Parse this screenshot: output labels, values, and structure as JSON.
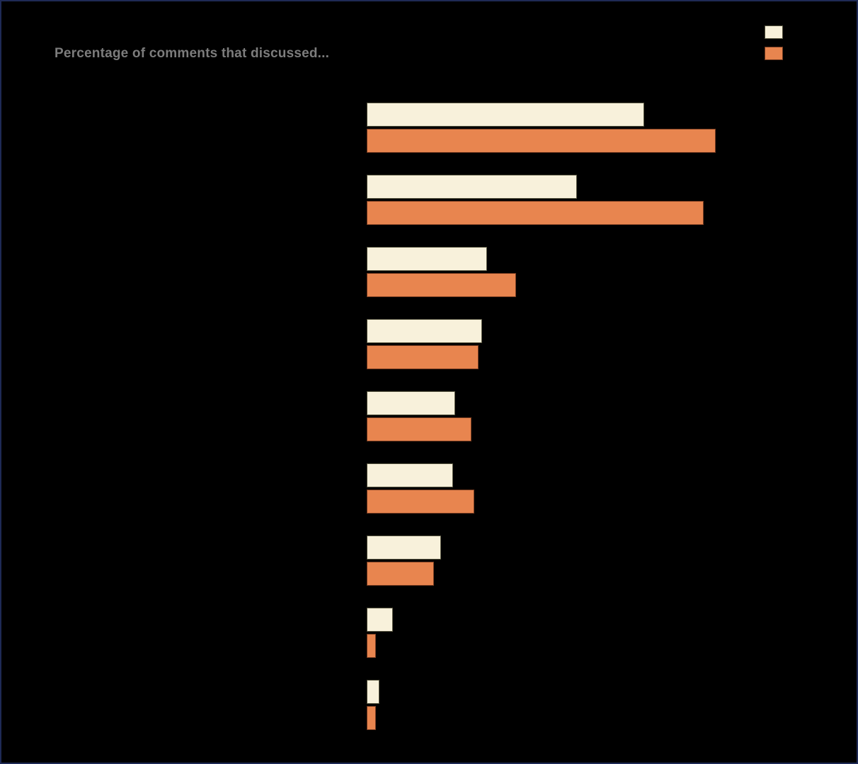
{
  "chart": {
    "title": "Percentage of comments that discussed...",
    "title_color": "#7c7c7c",
    "background_color": "#000000",
    "frame_border_color": "#1e2a55"
  },
  "chart_data": {
    "type": "bar",
    "orientation": "horizontal",
    "title": "Percentage of comments that discussed...",
    "categories": [
      "",
      "",
      "",
      "",
      "",
      "",
      "",
      "",
      ""
    ],
    "category_labels_visible": false,
    "series": [
      {
        "name": "cream",
        "color": "#f8f1db",
        "values": [
          35.4,
          26.8,
          15.4,
          14.7,
          11.3,
          11.0,
          9.5,
          3.3,
          1.6
        ]
      },
      {
        "name": "orange",
        "color": "#e8854f",
        "values": [
          44.5,
          43.0,
          19.1,
          14.3,
          13.4,
          13.7,
          8.6,
          1.2,
          1.2
        ]
      }
    ],
    "xlim": [
      0,
      60
    ],
    "axis_ticks_visible": false,
    "grid": false,
    "legend_position": "top-right",
    "legend_labels_visible": false
  }
}
